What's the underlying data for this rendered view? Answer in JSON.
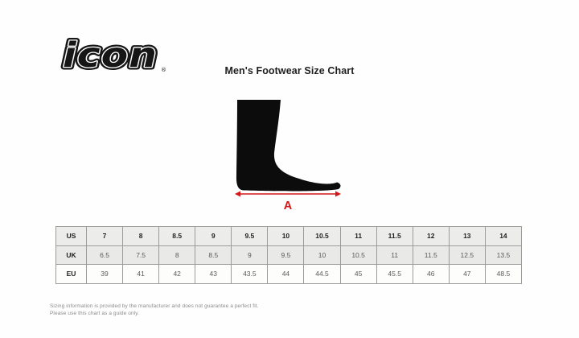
{
  "brand": {
    "logo_text": "icon",
    "registered_mark": "®"
  },
  "title": "Men's Footwear Size Chart",
  "diagram": {
    "measure_label": "A"
  },
  "size_table": {
    "rows": [
      {
        "label": "US",
        "values": [
          "7",
          "8",
          "8.5",
          "9",
          "9.5",
          "10",
          "10.5",
          "11",
          "11.5",
          "12",
          "13",
          "14"
        ]
      },
      {
        "label": "UK",
        "values": [
          "6.5",
          "7.5",
          "8",
          "8.5",
          "9",
          "9.5",
          "10",
          "10.5",
          "11",
          "11.5",
          "12.5",
          "13.5"
        ]
      },
      {
        "label": "EU",
        "values": [
          "39",
          "41",
          "42",
          "43",
          "43.5",
          "44",
          "44.5",
          "45",
          "45.5",
          "46",
          "47",
          "48.5"
        ]
      }
    ]
  },
  "footer": {
    "line1": "Sizing information is provided by the manufacturer and does not guarantee a perfect fit.",
    "line2": "Please use this chart as a guide only."
  },
  "colors": {
    "logo_black": "#161616",
    "foot_black": "#0c0c0c",
    "accent_red": "#d21619",
    "table_border": "#9c9c9c"
  }
}
